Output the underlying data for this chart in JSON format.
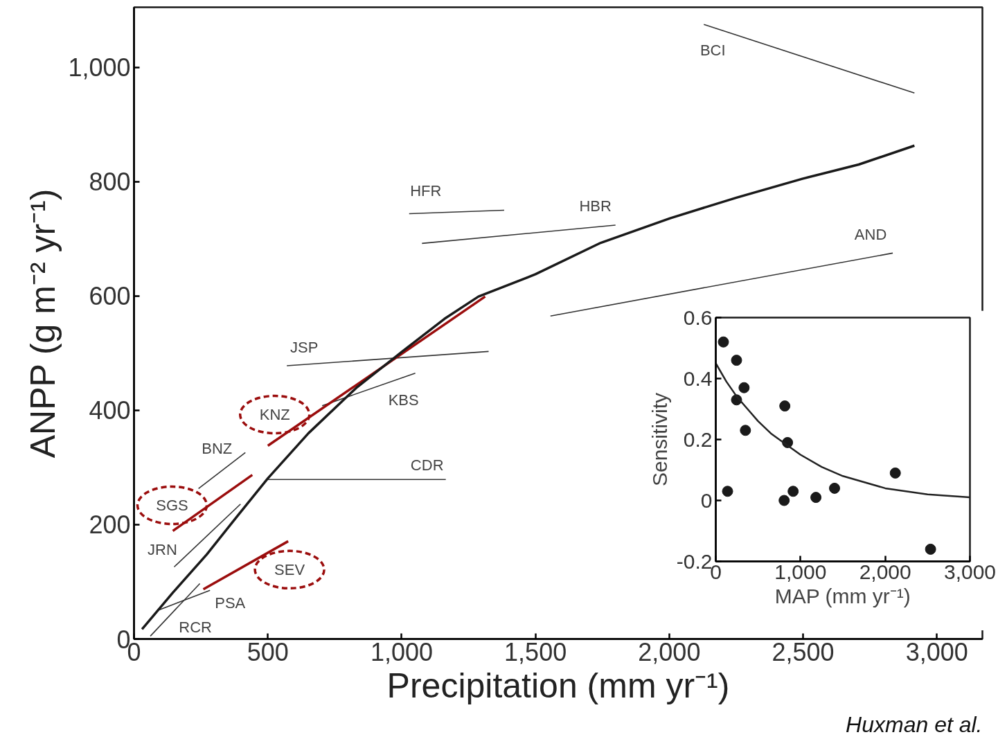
{
  "chart_data": [
    {
      "type": "line",
      "xlabel": "Precipitation (mm yr⁻¹)",
      "ylabel": "ANPP (g m⁻² yr⁻¹)",
      "xlim": [
        0,
        3170
      ],
      "ylim": [
        0,
        1105
      ],
      "xticks": [
        0,
        500,
        {
          "value": 1000,
          "label": "1,000"
        },
        {
          "value": 1500,
          "label": "1,500"
        },
        {
          "value": 2000,
          "label": "2,000"
        },
        {
          "value": 2500,
          "label": "2,500"
        },
        {
          "value": 3000,
          "label": "3,000"
        }
      ],
      "yticks": [
        0,
        200,
        400,
        600,
        800,
        {
          "value": 1000,
          "label": "1,000"
        }
      ],
      "grid": false,
      "annotations": [
        "Huxman et al."
      ],
      "series": [
        {
          "name": "BCI",
          "color": "#333333",
          "x": [
            2129,
            2916
          ],
          "values": [
            1075,
            955
          ]
        },
        {
          "name": "HFR",
          "color": "#333333",
          "x": [
            1028,
            1383
          ],
          "values": [
            744,
            750
          ]
        },
        {
          "name": "HBR",
          "color": "#333333",
          "x": [
            1076,
            1799
          ],
          "values": [
            692,
            724
          ]
        },
        {
          "name": "AND",
          "color": "#333333",
          "x": [
            1556,
            2835
          ],
          "values": [
            565,
            675
          ]
        },
        {
          "name": "JSP",
          "color": "#333333",
          "x": [
            571,
            1325
          ],
          "values": [
            478,
            503
          ]
        },
        {
          "name": "KBS",
          "color": "#333333",
          "x": [
            703,
            1051
          ],
          "values": [
            408,
            465
          ]
        },
        {
          "name": "KNZ",
          "color": "#9b0d0d",
          "x": [
            500,
            1312
          ],
          "values": [
            338,
            599
          ]
        },
        {
          "name": "CDR",
          "color": "#333333",
          "x": [
            500,
            1165
          ],
          "values": [
            279,
            279
          ]
        },
        {
          "name": "BNZ",
          "color": "#333333",
          "x": [
            241,
            416
          ],
          "values": [
            263,
            326
          ]
        },
        {
          "name": "SGS",
          "color": "#9b0d0d",
          "x": [
            145,
            442
          ],
          "values": [
            189,
            287
          ]
        },
        {
          "name": "JRN",
          "color": "#333333",
          "x": [
            150,
            398
          ],
          "values": [
            126,
            236
          ]
        },
        {
          "name": "SEV",
          "color": "#9b0d0d",
          "x": [
            259,
            576
          ],
          "values": [
            87,
            171
          ]
        },
        {
          "name": "PSA",
          "color": "#333333",
          "x": [
            94,
            284
          ],
          "values": [
            51,
            85
          ]
        },
        {
          "name": "RCR",
          "color": "#333333",
          "x": [
            61,
            246
          ],
          "values": [
            5,
            97
          ]
        },
        {
          "color": "#1a1a1a",
          "x": [
            30,
            145,
            272,
            386,
            500,
            652,
            830,
            1000,
            1160,
            1287,
            1500,
            1744,
            2003,
            2251,
            2497,
            2708,
            2916
          ],
          "values": [
            17,
            81,
            148,
            215,
            281,
            360,
            439,
            502,
            560,
            599,
            638,
            693,
            736,
            772,
            805,
            830,
            863
          ]
        }
      ]
    },
    {
      "type": "scatter",
      "xlabel": "MAP (mm yr⁻¹)",
      "ylabel": "Sensitivity",
      "xlim": [
        0,
        3000
      ],
      "ylim": [
        -0.2,
        0.6
      ],
      "xticks": [
        0,
        {
          "value": 1000,
          "label": "1,000"
        },
        {
          "value": 2000,
          "label": "2,000"
        },
        {
          "value": 3000,
          "label": "3,000"
        }
      ],
      "yticks": [
        -0.2,
        0,
        0.2,
        0.4,
        0.6
      ],
      "grid": false,
      "series": [
        {
          "marker": "circle",
          "color": "#1a1a1a",
          "x": [
            90,
            139,
            245,
            245,
            334,
            350,
            815,
            847,
            807,
            913,
            1182,
            1402,
            2119,
            2535
          ],
          "values": [
            0.52,
            0.03,
            0.46,
            0.33,
            0.37,
            0.23,
            0.31,
            0.19,
            0.0,
            0.03,
            0.01,
            0.04,
            0.09,
            -0.16
          ]
        },
        {
          "type": "line",
          "color": "#222222",
          "x": [
            0,
            125,
            250,
            375,
            500,
            650,
            800,
            1000,
            1250,
            1500,
            2000,
            2500,
            3000
          ],
          "values": [
            0.45,
            0.39,
            0.34,
            0.3,
            0.26,
            0.22,
            0.19,
            0.15,
            0.11,
            0.08,
            0.04,
            0.02,
            0.01
          ]
        }
      ]
    }
  ]
}
